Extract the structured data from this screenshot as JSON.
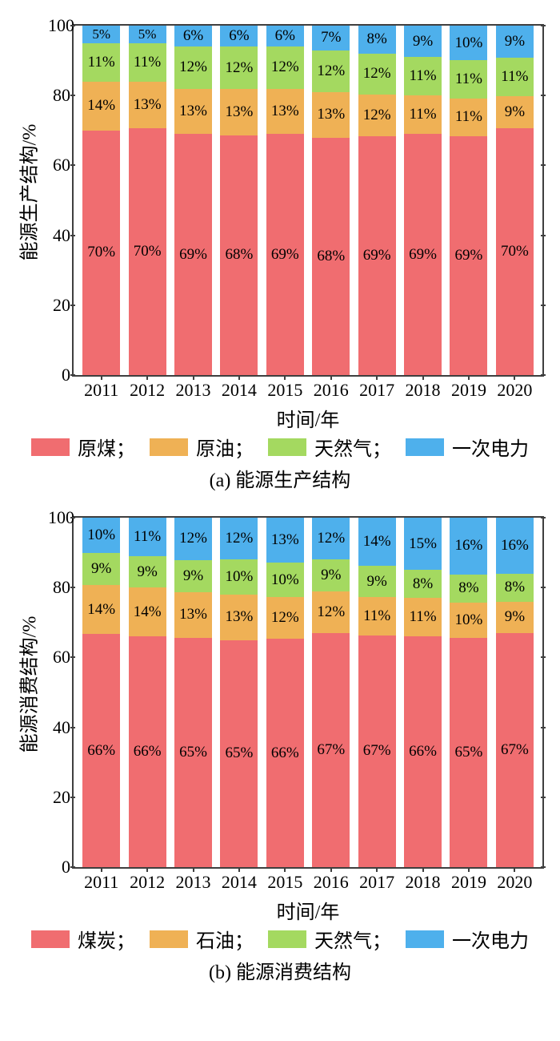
{
  "colors": {
    "series": [
      "#f06d70",
      "#efb155",
      "#a4d960",
      "#4eb0ec"
    ],
    "border": "#3f3f3f",
    "background": "#ffffff",
    "text": "#000000"
  },
  "typography": {
    "axis_label_fontsize": 24,
    "tick_fontsize": 22,
    "bar_label_fontsize": 19,
    "legend_fontsize": 24,
    "subtitle_fontsize": 24,
    "font_family": "Times New Roman / SimSun"
  },
  "chart_a": {
    "type": "stacked_bar_100pct",
    "ylabel": "能源生产结构/%",
    "xlabel": "时间/年",
    "subtitle": "(a) 能源生产结构",
    "ylim": [
      0,
      100
    ],
    "ytick_step": 20,
    "yticks": [
      0,
      20,
      40,
      60,
      80,
      100
    ],
    "categories": [
      "2011",
      "2012",
      "2013",
      "2014",
      "2015",
      "2016",
      "2017",
      "2018",
      "2019",
      "2020"
    ],
    "series_names": [
      "原煤；",
      "原油；",
      "天然气；",
      "一次电力"
    ],
    "bar_width": 0.82,
    "data": [
      [
        70,
        14,
        11,
        5
      ],
      [
        70,
        13,
        11,
        5
      ],
      [
        69,
        13,
        12,
        6
      ],
      [
        68,
        13,
        12,
        6
      ],
      [
        69,
        13,
        12,
        6
      ],
      [
        68,
        13,
        12,
        7
      ],
      [
        69,
        12,
        12,
        8
      ],
      [
        69,
        11,
        11,
        9
      ],
      [
        69,
        11,
        11,
        10
      ],
      [
        70,
        9,
        11,
        9
      ]
    ]
  },
  "chart_b": {
    "type": "stacked_bar_100pct",
    "ylabel": "能源消费结构/%",
    "xlabel": "时间/年",
    "subtitle": "(b) 能源消费结构",
    "ylim": [
      0,
      100
    ],
    "ytick_step": 20,
    "yticks": [
      0,
      20,
      40,
      60,
      80,
      100
    ],
    "categories": [
      "2011",
      "2012",
      "2013",
      "2014",
      "2015",
      "2016",
      "2017",
      "2018",
      "2019",
      "2020"
    ],
    "series_names": [
      "煤炭；",
      "石油；",
      "天然气；",
      "一次电力"
    ],
    "bar_width": 0.82,
    "data": [
      [
        66,
        14,
        9,
        10
      ],
      [
        66,
        14,
        9,
        11
      ],
      [
        65,
        13,
        9,
        12
      ],
      [
        65,
        13,
        10,
        12
      ],
      [
        66,
        12,
        10,
        13
      ],
      [
        67,
        12,
        9,
        12
      ],
      [
        67,
        11,
        9,
        14
      ],
      [
        66,
        11,
        8,
        15
      ],
      [
        65,
        10,
        8,
        16
      ],
      [
        67,
        9,
        8,
        16
      ]
    ]
  }
}
